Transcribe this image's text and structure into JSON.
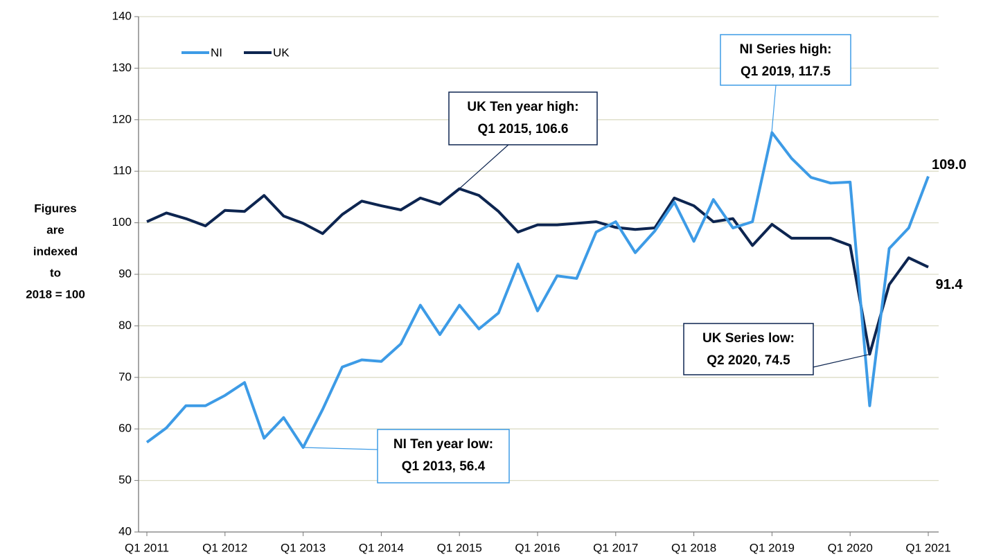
{
  "chart_data": {
    "type": "line",
    "ylabel": [
      "Figures",
      "are",
      "indexed",
      "to",
      "2018 = 100"
    ],
    "categories": [
      "Q1 2011",
      null,
      null,
      null,
      "Q1 2012",
      null,
      null,
      null,
      "Q1 2013",
      null,
      null,
      null,
      "Q1 2014",
      null,
      null,
      null,
      "Q1 2015",
      null,
      null,
      null,
      "Q1 2016",
      null,
      null,
      null,
      "Q1 2017",
      null,
      null,
      null,
      "Q1 2018",
      null,
      null,
      null,
      "Q1 2019",
      null,
      null,
      null,
      "Q1 2020",
      null,
      null,
      null,
      "Q1 2021"
    ],
    "series": [
      {
        "name": "NI",
        "color": "#3d9be6",
        "values": [
          57.4,
          60.2,
          64.5,
          64.5,
          66.5,
          69.0,
          58.2,
          62.2,
          56.4,
          63.8,
          72.0,
          73.4,
          73.1,
          76.5,
          84.0,
          78.3,
          84.0,
          79.4,
          82.5,
          92.0,
          82.9,
          89.7,
          89.2,
          98.2,
          100.2,
          94.2,
          98.4,
          104.0,
          96.4,
          104.5,
          99.0,
          100.2,
          117.5,
          112.5,
          108.8,
          107.7,
          107.9,
          64.5,
          95.0,
          99.0,
          109.0
        ],
        "value_labels": [
          null,
          null,
          null,
          null,
          null,
          null,
          null,
          null,
          null,
          null,
          null,
          null,
          null,
          null,
          null,
          null,
          null,
          null,
          null,
          null,
          null,
          null,
          null,
          null,
          null,
          null,
          null,
          null,
          null,
          null,
          null,
          null,
          null,
          null,
          null,
          null,
          null,
          null,
          null,
          null,
          "109.0"
        ]
      },
      {
        "name": "UK",
        "color": "#0d2550",
        "values": [
          100.2,
          101.9,
          100.8,
          99.4,
          102.4,
          102.2,
          105.3,
          101.3,
          99.9,
          97.9,
          101.6,
          104.2,
          103.3,
          102.5,
          104.8,
          103.6,
          106.6,
          105.3,
          102.2,
          98.2,
          99.6,
          99.6,
          99.9,
          100.2,
          99.1,
          98.7,
          99.0,
          104.8,
          103.3,
          100.2,
          100.8,
          95.6,
          99.7,
          97.0,
          97.0,
          97.0,
          95.6,
          74.5,
          88.0,
          93.2,
          91.4
        ],
        "value_labels": [
          null,
          null,
          null,
          null,
          null,
          null,
          null,
          null,
          null,
          null,
          null,
          null,
          null,
          null,
          null,
          null,
          null,
          null,
          null,
          null,
          null,
          null,
          null,
          null,
          null,
          null,
          null,
          null,
          null,
          null,
          null,
          null,
          null,
          null,
          null,
          null,
          null,
          null,
          null,
          null,
          "91.4"
        ]
      }
    ],
    "annotations": [
      {
        "lines": [
          "UK Ten year high:",
          "Q1 2015, 106.6"
        ],
        "color": "#0d2550"
      },
      {
        "lines": [
          "NI Series high:",
          "Q1 2019, 117.5"
        ],
        "color": "#3d9be6"
      },
      {
        "lines": [
          "UK Series low:",
          "Q2 2020, 74.5"
        ],
        "color": "#0d2550"
      },
      {
        "lines": [
          "NI Ten year low:",
          "Q1 2013, 56.4"
        ],
        "color": "#3d9be6"
      }
    ],
    "ylim": [
      40,
      140
    ],
    "yticks": [
      40,
      50,
      60,
      70,
      80,
      90,
      100,
      110,
      120,
      130,
      140
    ],
    "grid": true,
    "legend": "top-left"
  }
}
